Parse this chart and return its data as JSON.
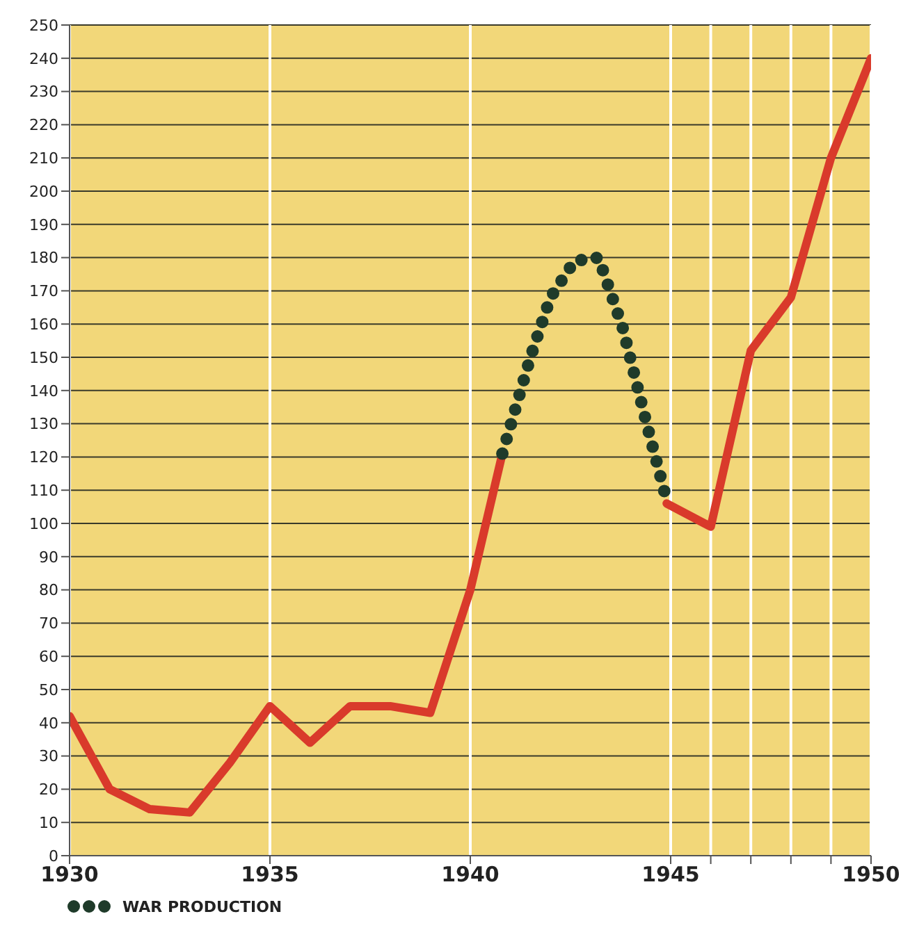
{
  "chart_data": {
    "type": "line",
    "xlim": [
      1930,
      1950
    ],
    "ylim": [
      0,
      250
    ],
    "xticks": [
      1930,
      1935,
      1940,
      1945,
      {
        "value": 1946,
        "label": null
      },
      {
        "value": 1947,
        "label": null
      },
      {
        "value": 1948,
        "label": null
      },
      {
        "value": 1949,
        "label": null
      },
      1950
    ],
    "yticks": [
      0,
      10,
      20,
      30,
      40,
      50,
      60,
      70,
      80,
      90,
      100,
      110,
      120,
      130,
      140,
      150,
      160,
      170,
      180,
      190,
      200,
      210,
      220,
      230,
      240,
      250
    ],
    "grid": true,
    "legend": "bottom left",
    "series": [
      {
        "color": "#d93a2b",
        "line_style": "solid",
        "x": [
          1930,
          1931,
          1932,
          1933,
          1934,
          1935,
          1936,
          1937,
          1938,
          1939,
          1940,
          1940.8,
          null,
          1944.9,
          1946,
          1947,
          1948,
          1949,
          1950
        ],
        "values": [
          42,
          20,
          14,
          13,
          28,
          45,
          34,
          45,
          45,
          43,
          80,
          121,
          null,
          106,
          99,
          152,
          168,
          210,
          240
        ]
      },
      {
        "name": "WAR PRODUCTION",
        "color": "#1f3b2a",
        "line_style": "dotted",
        "x": [
          1940.8,
          1941.5,
          1942,
          1942.6,
          1943.2,
          1943.8,
          1944.4,
          1944.9
        ],
        "values": [
          121,
          150,
          168,
          179,
          180,
          159,
          130,
          107
        ]
      }
    ]
  }
}
